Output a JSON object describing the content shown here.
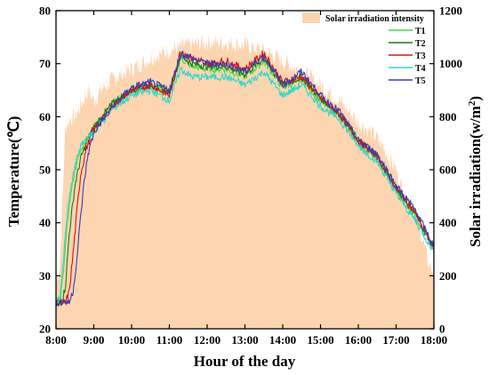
{
  "chart_data": {
    "type": "line",
    "xlabel": "Hour of the day",
    "ylabel_left": "Temperature(℃)",
    "ylabel_right_prefix": "Solar irradiation(w/m",
    "ylabel_right_sup": "2",
    "ylabel_right_suffix": ")",
    "xlim": [
      8,
      18
    ],
    "ylim_left": [
      20,
      80
    ],
    "ylim_right": [
      0,
      1200
    ],
    "grid": false,
    "legend_position": "top-right",
    "x_ticks": [
      {
        "value": 8,
        "label": "8:00"
      },
      {
        "value": 9,
        "label": "9:00"
      },
      {
        "value": 10,
        "label": "10:00"
      },
      {
        "value": 11,
        "label": "11:00"
      },
      {
        "value": 12,
        "label": "12:00"
      },
      {
        "value": 13,
        "label": "13:00"
      },
      {
        "value": 14,
        "label": "14:00"
      },
      {
        "value": 15,
        "label": "15:00"
      },
      {
        "value": 16,
        "label": "16:00"
      },
      {
        "value": 17,
        "label": "17:00"
      },
      {
        "value": 18,
        "label": "18:00"
      }
    ],
    "y_left_ticks": [
      20,
      30,
      40,
      50,
      60,
      70,
      80
    ],
    "y_right_ticks": [
      0,
      200,
      400,
      600,
      800,
      1000,
      1200
    ],
    "area_series": {
      "name": "Solar irradiation intensity",
      "color": "#fdd5b1",
      "x": [
        8.0,
        8.1,
        8.25,
        8.35,
        8.5,
        8.65,
        8.85,
        9.0,
        9.25,
        9.5,
        10.0,
        10.5,
        11.0,
        11.5,
        12.0,
        12.5,
        13.0,
        13.5,
        14.0,
        14.5,
        15.0,
        15.5,
        16.0,
        16.5,
        17.0,
        17.3,
        17.6,
        17.85,
        18.0
      ],
      "values": [
        180,
        230,
        760,
        790,
        800,
        840,
        900,
        860,
        910,
        940,
        980,
        1020,
        1050,
        1070,
        1080,
        1078,
        1070,
        1050,
        1010,
        970,
        920,
        860,
        780,
        720,
        600,
        470,
        400,
        250,
        210
      ]
    },
    "series": [
      {
        "name": "T1",
        "color": "#4cd84c",
        "x": [
          8.0,
          8.12,
          8.2,
          8.3,
          8.45,
          8.6,
          8.75,
          9.0,
          9.5,
          10.0,
          10.5,
          11.0,
          11.3,
          11.6,
          12.0,
          12.5,
          13.0,
          13.5,
          14.0,
          14.5,
          15.0,
          15.5,
          16.0,
          16.5,
          17.0,
          17.5,
          18.0
        ],
        "values": [
          25.0,
          25.5,
          31.0,
          40.0,
          48.0,
          53.0,
          55.5,
          58.0,
          62.5,
          65.0,
          66.0,
          64.5,
          71.0,
          69.5,
          69.0,
          69.0,
          67.5,
          70.5,
          65.5,
          67.0,
          63.0,
          60.0,
          55.0,
          52.0,
          46.0,
          41.5,
          35.0
        ]
      },
      {
        "name": "T2",
        "color": "#1a7a1a",
        "x": [
          8.0,
          8.15,
          8.25,
          8.35,
          8.5,
          8.65,
          8.8,
          9.0,
          9.5,
          10.0,
          10.5,
          11.0,
          11.3,
          11.6,
          12.0,
          12.5,
          13.0,
          13.5,
          14.0,
          14.5,
          15.0,
          15.5,
          16.0,
          16.5,
          17.0,
          17.5,
          18.0
        ],
        "values": [
          25.0,
          25.0,
          28.0,
          38.0,
          47.0,
          52.0,
          55.0,
          58.0,
          62.5,
          65.0,
          66.0,
          64.5,
          71.5,
          70.0,
          69.5,
          69.5,
          68.0,
          71.0,
          66.0,
          67.5,
          63.5,
          60.5,
          55.5,
          52.5,
          46.5,
          42.0,
          35.0
        ]
      },
      {
        "name": "T3",
        "color": "#e01010",
        "x": [
          8.0,
          8.25,
          8.35,
          8.45,
          8.55,
          8.65,
          8.8,
          9.0,
          9.5,
          10.0,
          10.5,
          11.0,
          11.3,
          11.6,
          12.0,
          12.5,
          13.0,
          13.5,
          14.0,
          14.5,
          15.0,
          15.5,
          16.0,
          16.5,
          17.0,
          17.5,
          18.0
        ],
        "values": [
          25.0,
          25.0,
          27.0,
          34.0,
          42.0,
          49.0,
          54.0,
          57.5,
          62.0,
          65.0,
          66.0,
          64.0,
          72.5,
          71.0,
          70.0,
          70.5,
          69.0,
          72.0,
          66.5,
          67.5,
          63.5,
          60.5,
          55.5,
          52.5,
          46.5,
          42.0,
          35.0
        ]
      },
      {
        "name": "T4",
        "color": "#2ed8c8",
        "x": [
          8.0,
          8.1,
          8.2,
          8.3,
          8.45,
          8.6,
          8.75,
          9.0,
          9.5,
          10.0,
          10.5,
          11.0,
          11.3,
          11.6,
          12.0,
          12.5,
          13.0,
          13.5,
          14.0,
          14.5,
          15.0,
          15.5,
          16.0,
          16.5,
          17.0,
          17.5,
          18.0
        ],
        "values": [
          25.0,
          26.0,
          33.0,
          42.0,
          49.0,
          53.5,
          55.5,
          57.0,
          61.5,
          64.0,
          65.0,
          63.0,
          69.0,
          67.5,
          67.5,
          67.5,
          66.0,
          68.5,
          64.0,
          66.0,
          62.0,
          59.5,
          54.5,
          51.5,
          45.5,
          40.5,
          34.5
        ]
      },
      {
        "name": "T5",
        "color": "#3a3ab8",
        "x": [
          8.0,
          8.35,
          8.45,
          8.55,
          8.65,
          8.75,
          8.85,
          9.0,
          9.5,
          10.0,
          10.5,
          11.0,
          11.3,
          11.6,
          12.0,
          12.5,
          13.0,
          13.5,
          14.0,
          14.5,
          15.0,
          15.5,
          16.0,
          16.5,
          17.0,
          17.5,
          18.0
        ],
        "values": [
          25.0,
          25.0,
          27.0,
          33.0,
          41.0,
          48.0,
          53.0,
          57.0,
          62.0,
          65.5,
          66.5,
          65.0,
          72.0,
          71.0,
          70.0,
          70.0,
          68.5,
          71.5,
          66.0,
          68.5,
          64.0,
          61.0,
          55.5,
          53.0,
          47.0,
          42.5,
          35.5
        ]
      }
    ]
  }
}
